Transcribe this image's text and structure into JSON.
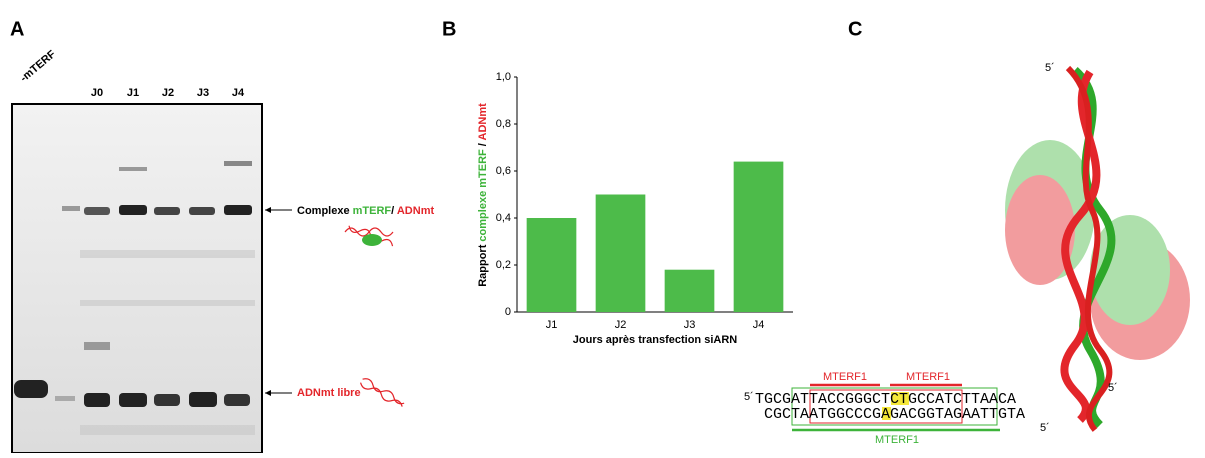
{
  "panels": {
    "a": {
      "letter": "A",
      "control_lane": "-mTERF",
      "lanes": [
        "J0",
        "J1",
        "J2",
        "J3",
        "J4"
      ],
      "complex_label": [
        "Complexe ",
        "mTERF",
        "/ ",
        "ADNmt"
      ],
      "free_label": "ADNmt libre"
    },
    "b": {
      "letter": "B"
    },
    "c": {
      "letter": "C",
      "end_top": "5´",
      "end_bottom": "5´",
      "seq_prefix": "5´",
      "seq_top": "TGCGATTACCGGGCTCTGCCATCTTAACA",
      "seq_bottom": "CGCTAATGGCCCGAGACGGTAGAATTGTA",
      "seq_suffix": "5´",
      "site_left": "MTERF1",
      "site_right": "MTERF1",
      "site_bottom": "MTERF1"
    }
  },
  "chart_data": {
    "type": "bar",
    "categories": [
      "J1",
      "J2",
      "J3",
      "J4"
    ],
    "values": [
      0.4,
      0.5,
      0.18,
      0.64
    ],
    "color": "#4dbb4a",
    "ylim": [
      0,
      1
    ],
    "yticks": [
      0,
      {
        "value": 0.2,
        "label": "0,2"
      },
      {
        "value": 0.4,
        "label": "0,4"
      },
      {
        "value": 0.6,
        "label": "0,6"
      },
      {
        "value": 0.8,
        "label": "0,8"
      },
      {
        "value": 1,
        "label": "1,0"
      }
    ],
    "xlabel": "Jours après transfection siARN",
    "ylabel": [
      "Rapport ",
      "complexe mTERF",
      " / ",
      "ADNmt"
    ]
  }
}
